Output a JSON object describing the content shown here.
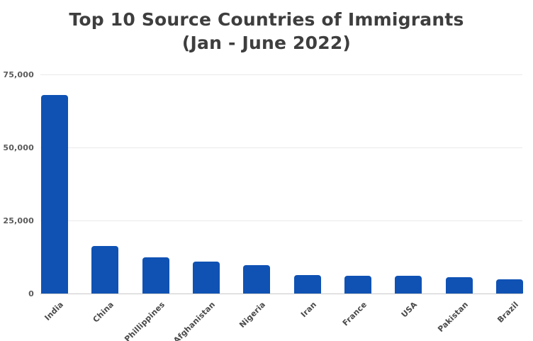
{
  "chart_data": {
    "type": "bar",
    "title": "Top 10 Source Countries of Immigrants",
    "subtitle": "(Jan - June 2022)",
    "categories": [
      "India",
      "China",
      "Phillippines",
      "Afghanistan",
      "Nigeria",
      "Iran",
      "France",
      "USA",
      "Pakistan",
      "Brazil"
    ],
    "values": [
      68000,
      16300,
      12400,
      11000,
      9700,
      6300,
      6100,
      6000,
      5600,
      4800
    ],
    "xlabel": "",
    "ylabel": "",
    "ylim": [
      0,
      75000
    ],
    "yticks": [
      0,
      25000,
      50000,
      75000
    ],
    "ytick_labels": [
      "0",
      "25,000",
      "50,000",
      "75,000"
    ],
    "grid": "horizontal-only",
    "legend": "none",
    "bar_color": "#0f52b4",
    "colors": {
      "title": "#3e3e3e",
      "tick_label": "#5a5a5a",
      "gridline": "#e9e9e9",
      "baseline": "#c9c9c9",
      "background": "#ffffff"
    }
  }
}
